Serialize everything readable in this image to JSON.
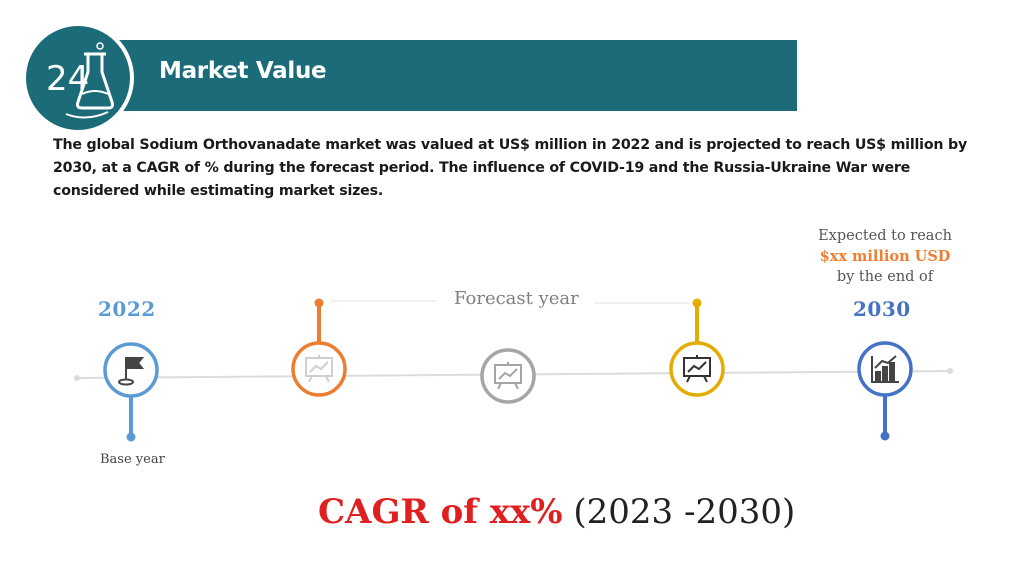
{
  "header": {
    "title": "Market Value",
    "logo_text": "24"
  },
  "intro": {
    "paragraph": "The global Sodium Orthovanadate market was valued at US$ million in 2022 and is projected to reach US$ million by 2030, at a CAGR of % during the forecast period. The influence of COVID-19 and the Russia-Ukraine War were considered while estimating market sizes."
  },
  "timeline": {
    "start_year": "2022",
    "end_year": "2030",
    "forecast_label": "Forecast year",
    "base_label": "Base year",
    "expected_line1": "Expected to reach",
    "expected_value": "$xx million USD",
    "expected_line2": "by the end of",
    "nodes": [
      {
        "icon": "flag-icon",
        "color": "#5b9bd5"
      },
      {
        "icon": "presentation-chart-icon",
        "color": "#ed7d31"
      },
      {
        "icon": "presentation-chart-icon",
        "color": "#a5a5a5"
      },
      {
        "icon": "presentation-chart-icon",
        "color": "#e2ac00"
      },
      {
        "icon": "bar-chart-icon",
        "color": "#4472c4"
      }
    ]
  },
  "cagr": {
    "label": "CAGR of xx%",
    "period": "(2023 -2030)"
  },
  "colors": {
    "header": "#1b6b78",
    "accent_orange": "#ef7d32",
    "cagr_red": "#e02020"
  }
}
